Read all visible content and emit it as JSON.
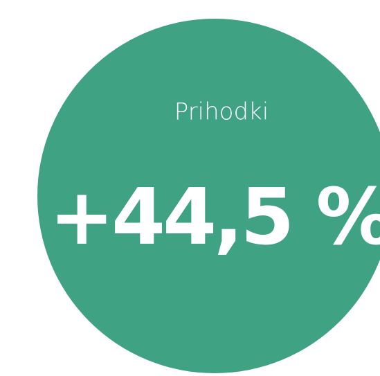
{
  "label": "Prihodki",
  "value": "+44,5 %"
}
